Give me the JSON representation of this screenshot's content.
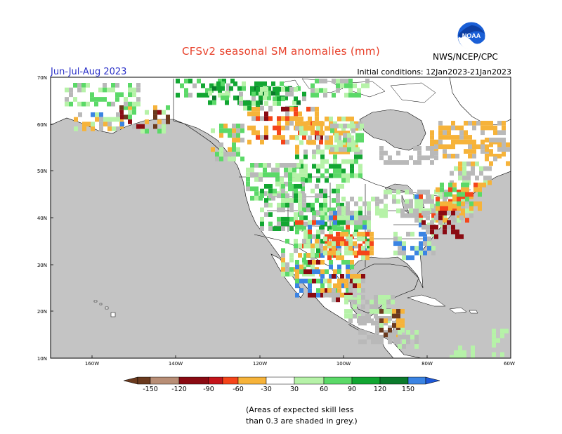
{
  "title": "CFSv2 seasonal SM anomalies (mm)",
  "season": "Jun-Jul-Aug 2023",
  "initial_conditions": "Initial conditions: 12Jan2023-21Jan2023",
  "agency": "NWS/NCEP/CPC",
  "logo_text": "NOAA",
  "lat_labels": [
    "70N",
    "60N",
    "50N",
    "40N",
    "30N",
    "20N",
    "10N"
  ],
  "lon_labels": [
    "160W",
    "140W",
    "120W",
    "100W",
    "80W",
    "60W"
  ],
  "colorbar": {
    "ticks": [
      "-150",
      "-120",
      "-90",
      "-60",
      "-30",
      "30",
      "60",
      "90",
      "120",
      "150"
    ],
    "colors": [
      "#6b3a1e",
      "#b88e76",
      "#8a0a12",
      "#c4141b",
      "#f5451a",
      "#f6b33a",
      "#ffffff",
      "#b6f2a8",
      "#5bd968",
      "#12a632",
      "#0b7a2c",
      "#3b84e3",
      "#1d58d8"
    ]
  },
  "note": [
    "(Areas of expected skill less",
    "than 0.3 are shaded in grey.)"
  ],
  "map_colors": {
    "ocean": "#c4c4c4",
    "land": "#ffffff",
    "noskill": "#b9b9b9"
  }
}
